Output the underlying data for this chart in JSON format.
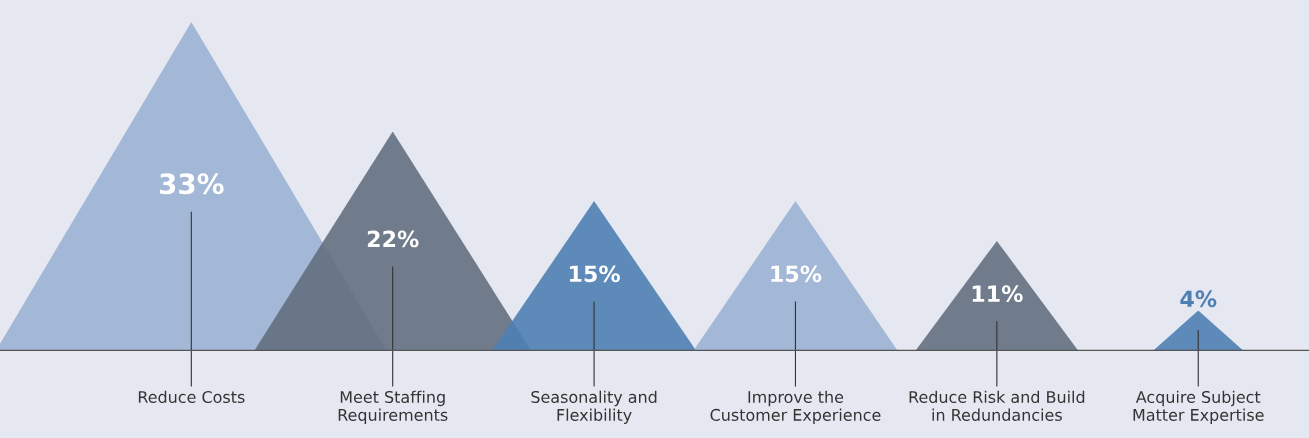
{
  "chart_data": {
    "type": "bar",
    "categories": [
      "Reduce Costs",
      "Meet Staffing\nRequirements",
      "Seasonality and\nFlexibility",
      "Improve the\nCustomer Experience",
      "Reduce Risk and Build\nin Redundancies",
      "Acquire Subject\nMatter Expertise"
    ],
    "values": [
      33,
      22,
      15,
      15,
      11,
      4
    ],
    "value_labels": [
      "33%",
      "22%",
      "15%",
      "15%",
      "11%",
      "4%"
    ],
    "colors": [
      "#9bb3d3",
      "#636f80",
      "#4e7fb3",
      "#9bb3d3",
      "#636f80",
      "#4e7fb3"
    ]
  }
}
